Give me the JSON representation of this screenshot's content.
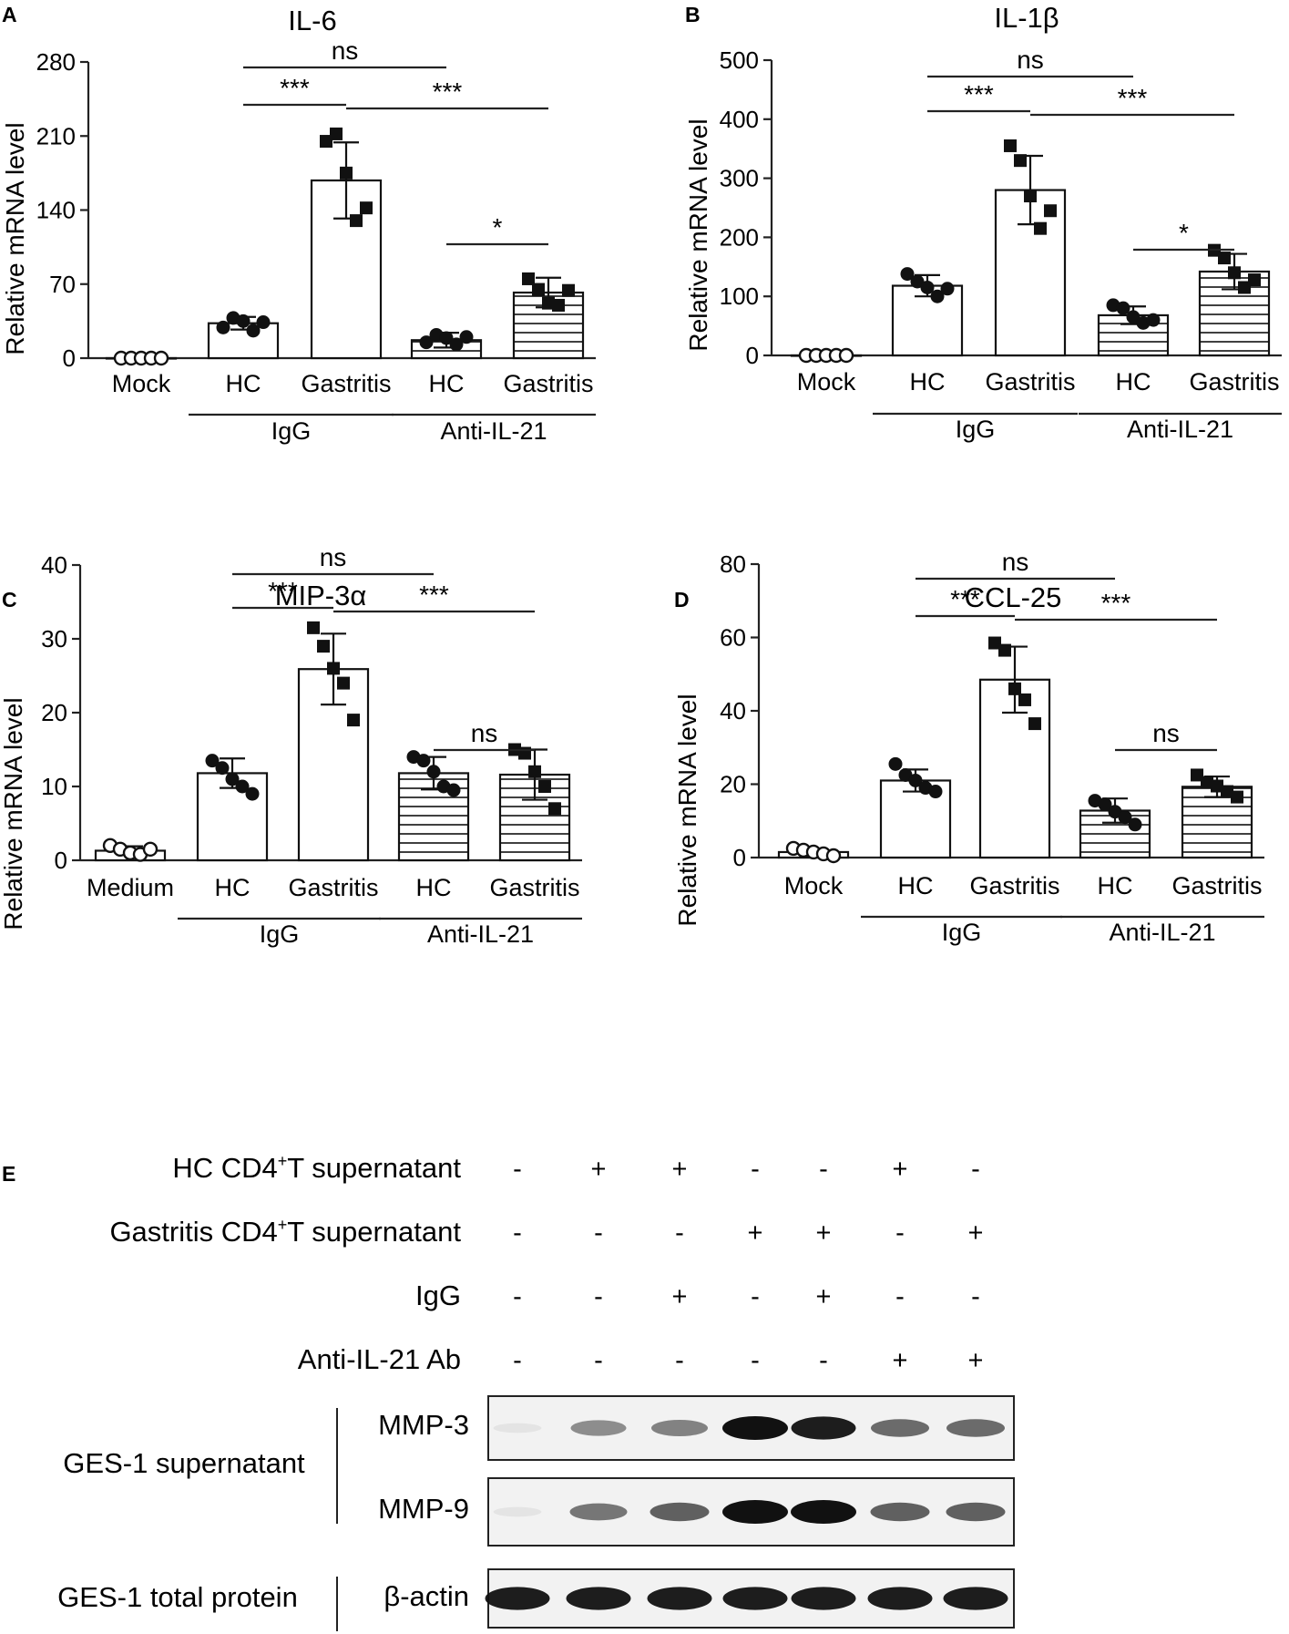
{
  "panels": [
    {
      "letter": "A"
    },
    {
      "letter": "B"
    },
    {
      "letter": "C"
    },
    {
      "letter": "D"
    },
    {
      "letter": "E"
    }
  ],
  "chart_data": [
    {
      "type": "bar",
      "panel": "A",
      "title": "IL-6",
      "ylabel": "Relative mRNA level",
      "xlabel": "",
      "ylim": [
        0,
        280
      ],
      "yticks": [
        0,
        70,
        140,
        210,
        280
      ],
      "categories": [
        "Mock",
        "HC",
        "Gastritis",
        "HC",
        "Gastritis"
      ],
      "groups": [
        {
          "label": "IgG",
          "categories": [
            1,
            2
          ]
        },
        {
          "label": "Anti-IL-21",
          "categories": [
            3,
            4
          ]
        }
      ],
      "values": [
        0,
        33,
        168,
        17,
        62
      ],
      "sd": [
        0,
        6,
        36,
        7,
        14
      ],
      "fill": [
        "white",
        "white",
        "white",
        "hatched",
        "hatched"
      ],
      "points": [
        [
          0,
          0,
          0,
          0,
          0
        ],
        [
          29,
          38,
          35,
          26,
          34
        ],
        [
          205,
          212,
          175,
          130,
          142
        ],
        [
          15,
          22,
          19,
          13,
          20
        ],
        [
          75,
          65,
          52,
          50,
          64
        ]
      ],
      "markers": [
        "open-circle",
        "circle",
        "square",
        "circle",
        "square"
      ],
      "significance": [
        {
          "from": 1,
          "to": 3,
          "label": "ns"
        },
        {
          "from": 1,
          "to": 2,
          "label": "***"
        },
        {
          "from": 2,
          "to": 4,
          "label": "***"
        },
        {
          "from": 3,
          "to": 4,
          "label": "*"
        }
      ]
    },
    {
      "type": "bar",
      "panel": "B",
      "title": "IL-1β",
      "ylabel": "Relative mRNA level",
      "xlabel": "",
      "ylim": [
        0,
        500
      ],
      "yticks": [
        0,
        100,
        200,
        300,
        400,
        500
      ],
      "categories": [
        "Mock",
        "HC",
        "Gastritis",
        "HC",
        "Gastritis"
      ],
      "groups": [
        {
          "label": "IgG",
          "categories": [
            1,
            2
          ]
        },
        {
          "label": "Anti-IL-21",
          "categories": [
            3,
            4
          ]
        }
      ],
      "values": [
        0,
        118,
        280,
        68,
        142
      ],
      "sd": [
        0,
        18,
        58,
        15,
        30
      ],
      "fill": [
        "white",
        "white",
        "white",
        "hatched",
        "hatched"
      ],
      "points": [
        [
          0,
          0,
          0,
          0,
          0
        ],
        [
          138,
          125,
          115,
          100,
          113
        ],
        [
          355,
          330,
          270,
          215,
          245
        ],
        [
          85,
          80,
          65,
          55,
          60
        ],
        [
          178,
          165,
          140,
          115,
          128
        ]
      ],
      "markers": [
        "open-circle",
        "circle",
        "square",
        "circle",
        "square"
      ],
      "significance": [
        {
          "from": 1,
          "to": 3,
          "label": "ns"
        },
        {
          "from": 1,
          "to": 2,
          "label": "***"
        },
        {
          "from": 2,
          "to": 4,
          "label": "***"
        },
        {
          "from": 3,
          "to": 4,
          "label": "*"
        }
      ]
    },
    {
      "type": "bar",
      "panel": "C",
      "title": "MIP-3α",
      "ylabel": "Relative mRNA level",
      "xlabel": "",
      "ylim": [
        0,
        40
      ],
      "yticks": [
        0,
        10,
        20,
        30,
        40
      ],
      "categories": [
        "Medium",
        "HC",
        "Gastritis",
        "HC",
        "Gastritis"
      ],
      "groups": [
        {
          "label": "IgG",
          "categories": [
            1,
            2
          ]
        },
        {
          "label": "Anti-IL-21",
          "categories": [
            3,
            4
          ]
        }
      ],
      "values": [
        1.3,
        11.8,
        25.9,
        11.8,
        11.6
      ],
      "sd": [
        0.6,
        2,
        4.8,
        2.2,
        3.4
      ],
      "fill": [
        "white",
        "white",
        "white",
        "hatched",
        "hatched"
      ],
      "points": [
        [
          2,
          1.5,
          1,
          0.8,
          1.5
        ],
        [
          13.5,
          12.5,
          11,
          10,
          9
        ],
        [
          31.5,
          29,
          26,
          24,
          19
        ],
        [
          14,
          13.5,
          12,
          10,
          9.5
        ],
        [
          15,
          14.5,
          12,
          10,
          7
        ]
      ],
      "markers": [
        "open-circle",
        "circle",
        "square",
        "circle",
        "square"
      ],
      "significance": [
        {
          "from": 1,
          "to": 3,
          "label": "ns"
        },
        {
          "from": 1,
          "to": 2,
          "label": "***"
        },
        {
          "from": 2,
          "to": 4,
          "label": "***"
        },
        {
          "from": 3,
          "to": 4,
          "label": "ns"
        }
      ]
    },
    {
      "type": "bar",
      "panel": "D",
      "title": "CCL-25",
      "ylabel": "Relative mRNA level",
      "xlabel": "",
      "ylim": [
        0,
        80
      ],
      "yticks": [
        0,
        20,
        40,
        60,
        80
      ],
      "categories": [
        "Mock",
        "HC",
        "Gastritis",
        "HC",
        "Gastritis"
      ],
      "groups": [
        {
          "label": "IgG",
          "categories": [
            1,
            2
          ]
        },
        {
          "label": "Anti-IL-21",
          "categories": [
            3,
            4
          ]
        }
      ],
      "values": [
        1.5,
        21,
        48.5,
        12.8,
        19.3
      ],
      "sd": [
        1,
        3,
        9,
        3.3,
        2.8
      ],
      "fill": [
        "white",
        "white",
        "white",
        "hatched",
        "hatched"
      ],
      "points": [
        [
          2.5,
          2,
          1.5,
          1,
          0.5
        ],
        [
          25.5,
          22.5,
          21,
          19,
          18
        ],
        [
          58.5,
          56.5,
          46,
          43,
          36.5
        ],
        [
          15.5,
          14.5,
          12.5,
          11,
          9
        ],
        [
          22.5,
          20.5,
          19.5,
          18,
          16.5
        ]
      ],
      "markers": [
        "open-circle",
        "circle",
        "square",
        "circle",
        "square"
      ],
      "significance": [
        {
          "from": 1,
          "to": 3,
          "label": "ns"
        },
        {
          "from": 1,
          "to": 2,
          "label": "***"
        },
        {
          "from": 2,
          "to": 4,
          "label": "***"
        },
        {
          "from": 3,
          "to": 4,
          "label": "ns"
        }
      ]
    }
  ],
  "blot": {
    "treatments": [
      {
        "label": "HC CD4",
        "sup": "+",
        "tail": "T supernatant",
        "marks": [
          "-",
          "+",
          "+",
          "-",
          "-",
          "+",
          "-"
        ]
      },
      {
        "label": "Gastritis CD4",
        "sup": "+",
        "tail": "T supernatant",
        "marks": [
          "-",
          "-",
          "-",
          "+",
          "+",
          "-",
          "+"
        ]
      },
      {
        "label": "IgG",
        "sup": "",
        "tail": "",
        "marks": [
          "-",
          "-",
          "+",
          "-",
          "+",
          "-",
          "-"
        ]
      },
      {
        "label": "Anti-IL-21 Ab",
        "sup": "",
        "tail": "",
        "marks": [
          "-",
          "-",
          "-",
          "-",
          "-",
          "+",
          "+"
        ]
      }
    ],
    "sections": [
      {
        "label": "GES-1 supernatant"
      },
      {
        "label": "GES-1 total protein"
      }
    ],
    "rows": [
      {
        "label": "MMP-3",
        "section": 0,
        "intensity": [
          0.04,
          0.45,
          0.5,
          1.0,
          0.95,
          0.6,
          0.6
        ]
      },
      {
        "label": "MMP-9",
        "section": 0,
        "intensity": [
          0.04,
          0.55,
          0.65,
          1.0,
          1.0,
          0.65,
          0.65
        ]
      },
      {
        "label": "β-actin",
        "section": 1,
        "intensity": [
          0.95,
          0.95,
          0.95,
          0.95,
          0.95,
          0.95,
          0.95
        ]
      }
    ]
  }
}
